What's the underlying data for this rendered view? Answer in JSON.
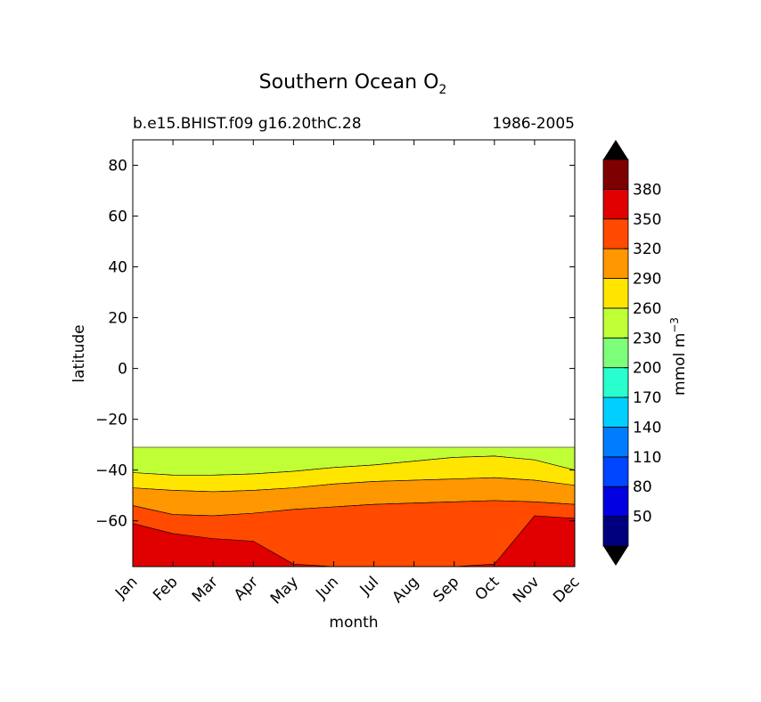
{
  "chart_data": {
    "type": "contourf",
    "title": "Southern Ocean O",
    "title_subscript": "2",
    "subtitle_left": "b.e15.BHIST.f09 g16.20thC.28",
    "subtitle_right": "1986-2005",
    "xlabel": "month",
    "ylabel": "latitude",
    "x_ticks": [
      "Jan",
      "Feb",
      "Mar",
      "Apr",
      "May",
      "Jun",
      "Jul",
      "Aug",
      "Sep",
      "Oct",
      "Nov",
      "Dec"
    ],
    "y_ticks": [
      "80",
      "60",
      "40",
      "20",
      "0",
      "−20",
      "−40",
      "−60"
    ],
    "y_tick_values": [
      80,
      60,
      40,
      20,
      0,
      -20,
      -40,
      -60
    ],
    "ylim": [
      -78,
      90
    ],
    "data_lat_range": [
      -78,
      -31
    ],
    "grid": false,
    "colorbar": {
      "label": "mmol m",
      "label_superscript": "−3",
      "tick_labels": [
        "50",
        "80",
        "110",
        "140",
        "170",
        "200",
        "230",
        "260",
        "290",
        "320",
        "350",
        "380"
      ],
      "levels": [
        20,
        50,
        80,
        110,
        140,
        170,
        200,
        230,
        260,
        290,
        320,
        350,
        380,
        410
      ],
      "colors": [
        "#00007f",
        "#0000e0",
        "#0045ff",
        "#007cff",
        "#00d0ff",
        "#29ffce",
        "#7dff7a",
        "#c0ff36",
        "#ffe500",
        "#ff9700",
        "#ff4a00",
        "#e00000",
        "#7f0000"
      ],
      "extend_low_color": "#000000",
      "extend_high_color": "#000000"
    },
    "regions_by_month": {
      "months": [
        1,
        2,
        3,
        4,
        5,
        6,
        7,
        8,
        9,
        10,
        11,
        12
      ],
      "lat_boundary_230_260": [
        -31,
        -31,
        -31,
        -31,
        -31,
        -31,
        -31,
        -31,
        -31,
        -31,
        -31,
        -31
      ],
      "lat_boundary_260_290": [
        -41,
        -42,
        -42,
        -41.5,
        -40.5,
        -39,
        -38,
        -36.5,
        -35,
        -34.5,
        -36,
        -40
      ],
      "lat_boundary_290_320": [
        -47,
        -48,
        -48.5,
        -48,
        -47,
        -45.5,
        -44.5,
        -44,
        -43.5,
        -43,
        -44,
        -46
      ],
      "lat_boundary_320_350": [
        -54,
        -57.5,
        -58,
        -57,
        -55.5,
        -54.5,
        -53.5,
        -53,
        -52.5,
        -52,
        -52.5,
        -53.5
      ],
      "band_350_380_max_lat": [
        -61,
        -65,
        -67,
        -68,
        -77,
        -78,
        -78,
        -78,
        -78,
        -77,
        -58,
        -59
      ]
    }
  }
}
